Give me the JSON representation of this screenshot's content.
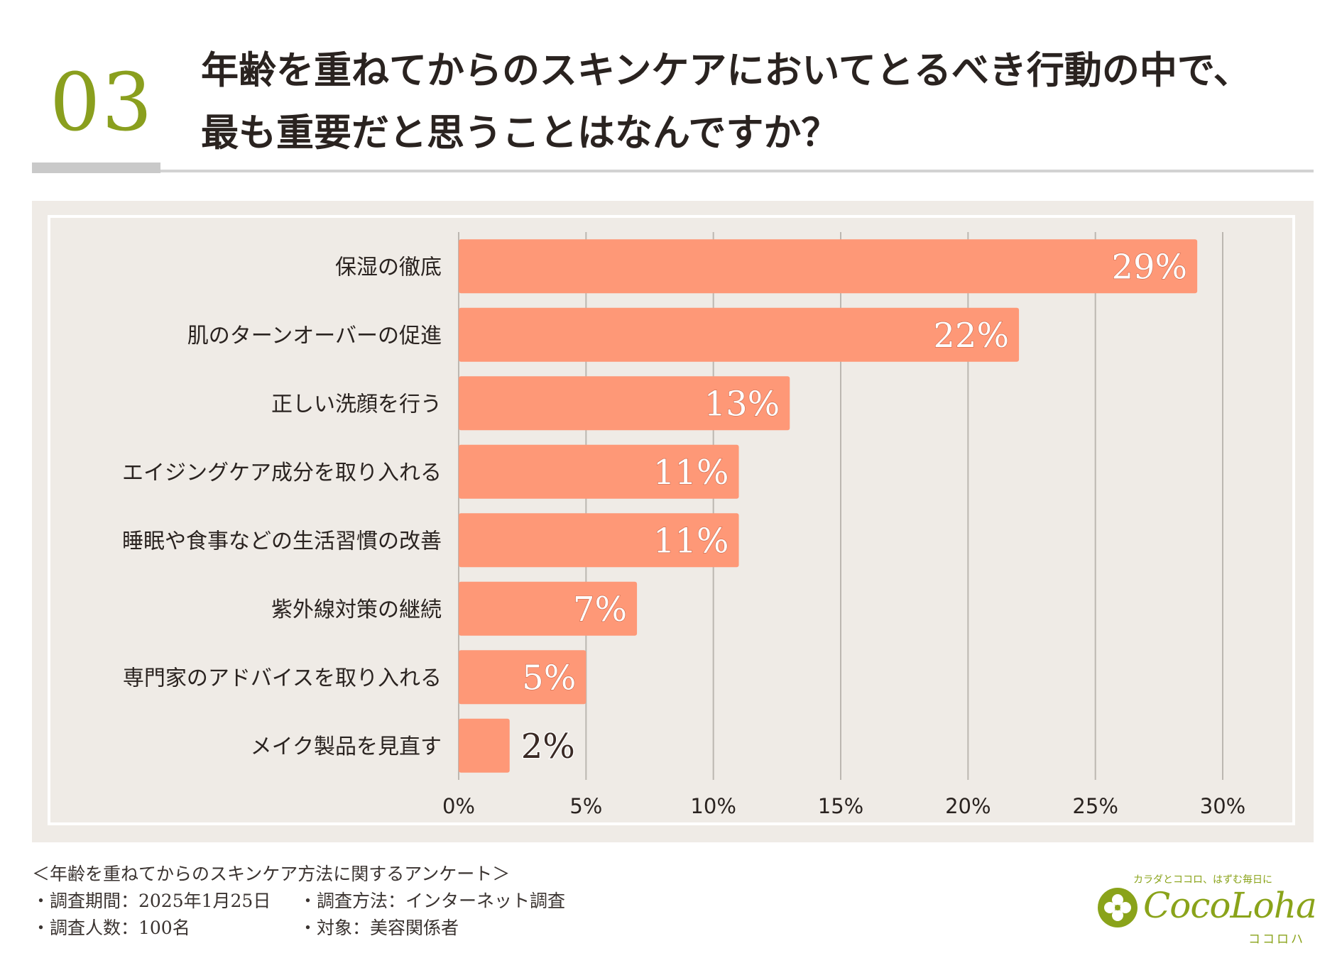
{
  "question": {
    "number": "03",
    "line1": "年齢を重ねてからのスキンケアにおいてとるべき行動の中で、",
    "line2": "最も重要だと思うことはなんですか？"
  },
  "colors": {
    "accent_green": "#8a9f1e",
    "bar": "#fe9877",
    "panel": "#efebe6"
  },
  "chart_data": {
    "type": "bar",
    "orientation": "horizontal",
    "categories": [
      "保湿の徹底",
      "肌のターンオーバーの促進",
      "正しい洗顔を行う",
      "エイジングケア成分を取り入れる",
      "睡眠や食事などの生活習慣の改善",
      "紫外線対策の継続",
      "専門家のアドバイスを取り入れる",
      "メイク製品を見直す"
    ],
    "values": [
      29,
      22,
      13,
      11,
      11,
      7,
      5,
      2
    ],
    "data_labels": [
      "29%",
      "22%",
      "13%",
      "11%",
      "11%",
      "7%",
      "5%",
      "2%"
    ],
    "xlim": [
      0,
      30
    ],
    "xticks": [
      0,
      5,
      10,
      15,
      20,
      25,
      30
    ],
    "xtick_labels": [
      "0%",
      "5%",
      "10%",
      "15%",
      "20%",
      "25%",
      "30%"
    ],
    "grid": true,
    "title": "",
    "xlabel": "",
    "ylabel": ""
  },
  "footer": {
    "survey_title": "＜年齢を重ねてからのスキンケア方法に関するアンケート＞",
    "period": "・調査期間：2025年1月25日",
    "method": "・調査方法：インターネット調査",
    "count": "・調査人数：100名",
    "target": "・対象：美容関係者"
  },
  "logo": {
    "tagline": "カラダとココロ、はずむ毎日に",
    "brand": "CocoLoha",
    "katakana": "ココロハ"
  }
}
